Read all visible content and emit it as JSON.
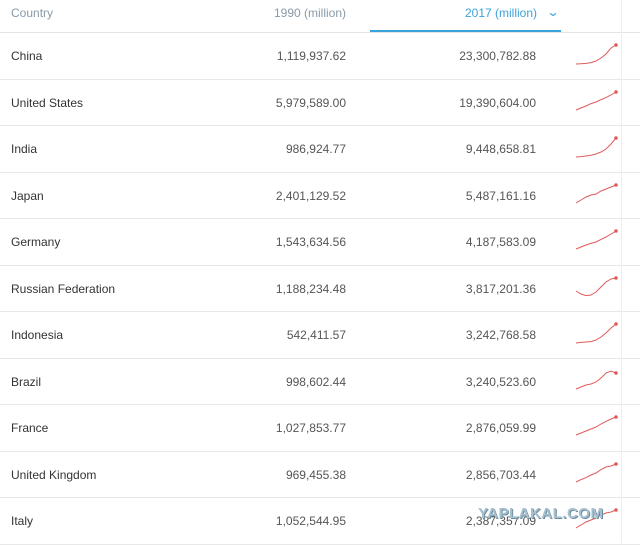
{
  "header": {
    "country_label": "Country",
    "col_1990_label": "1990 (million)",
    "col_2017_label": "2017 (million)",
    "sort_icon": "chevron-down-icon"
  },
  "accent_color": "#3aa3d9",
  "sparkline_color": "#e05a5a",
  "rows": [
    {
      "country": "China",
      "v1990": "1,119,937.62",
      "v2017": "23,300,782.88",
      "trend": [
        0.05,
        0.06,
        0.08,
        0.12,
        0.2,
        0.35,
        0.55,
        0.85,
        1.0
      ]
    },
    {
      "country": "United States",
      "v1990": "5,979,589.00",
      "v2017": "19,390,604.00",
      "trend": [
        0.1,
        0.2,
        0.3,
        0.42,
        0.5,
        0.62,
        0.72,
        0.85,
        1.0
      ]
    },
    {
      "country": "India",
      "v1990": "986,924.77",
      "v2017": "9,448,658.81",
      "trend": [
        0.05,
        0.07,
        0.1,
        0.14,
        0.2,
        0.3,
        0.45,
        0.7,
        1.0
      ]
    },
    {
      "country": "Japan",
      "v1990": "2,401,129.52",
      "v2017": "5,487,161.16",
      "trend": [
        0.1,
        0.25,
        0.4,
        0.5,
        0.55,
        0.7,
        0.8,
        0.9,
        1.0
      ]
    },
    {
      "country": "Germany",
      "v1990": "1,543,634.56",
      "v2017": "4,187,583.09",
      "trend": [
        0.1,
        0.2,
        0.3,
        0.38,
        0.45,
        0.58,
        0.7,
        0.85,
        1.0
      ]
    },
    {
      "country": "Russian Federation",
      "v1990": "1,188,234.48",
      "v2017": "3,817,201.36",
      "trend": [
        0.35,
        0.2,
        0.12,
        0.15,
        0.3,
        0.55,
        0.8,
        0.95,
        1.0
      ]
    },
    {
      "country": "Indonesia",
      "v1990": "542,411.57",
      "v2017": "3,242,768.58",
      "trend": [
        0.05,
        0.08,
        0.1,
        0.12,
        0.2,
        0.35,
        0.55,
        0.8,
        1.0
      ]
    },
    {
      "country": "Brazil",
      "v1990": "998,602.44",
      "v2017": "3,240,523.60",
      "trend": [
        0.1,
        0.2,
        0.3,
        0.35,
        0.45,
        0.65,
        0.9,
        1.0,
        0.9
      ]
    },
    {
      "country": "France",
      "v1990": "1,027,853.77",
      "v2017": "2,876,059.99",
      "trend": [
        0.1,
        0.2,
        0.3,
        0.4,
        0.5,
        0.65,
        0.78,
        0.9,
        1.0
      ]
    },
    {
      "country": "United Kingdom",
      "v1990": "969,455.38",
      "v2017": "2,856,703.44",
      "trend": [
        0.1,
        0.22,
        0.32,
        0.45,
        0.55,
        0.72,
        0.85,
        0.9,
        1.0
      ]
    },
    {
      "country": "Italy",
      "v1990": "1,052,544.95",
      "v2017": "2,387,357.09",
      "trend": [
        0.1,
        0.25,
        0.4,
        0.5,
        0.6,
        0.75,
        0.85,
        0.9,
        1.0
      ]
    }
  ],
  "watermark": "YAPLAKAL.COM"
}
